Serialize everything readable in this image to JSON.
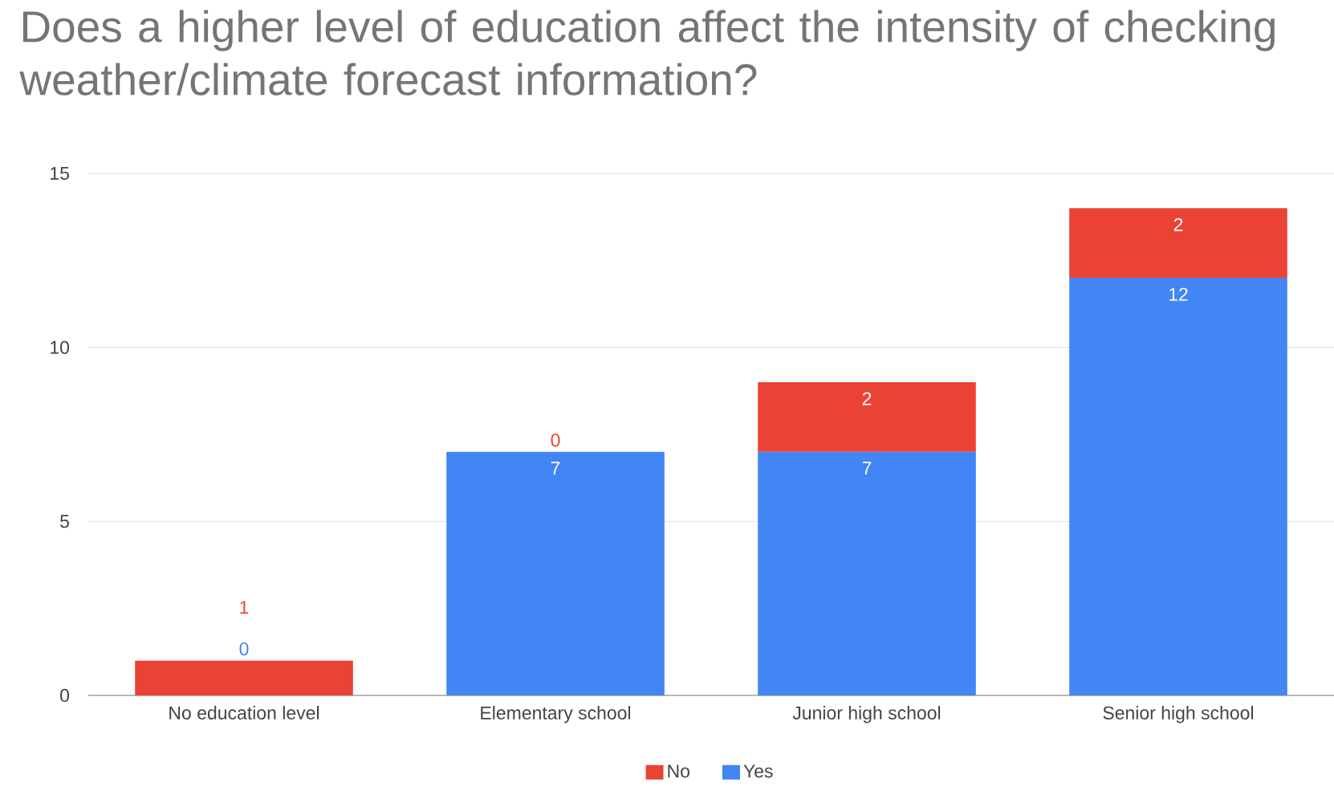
{
  "chart_data": {
    "type": "bar",
    "stacked": true,
    "title": "Does a higher level of education affect the intensity of checking weather/climate forecast information?",
    "categories": [
      "No education level",
      "Elementary school",
      "Junior high school",
      "Senior high school"
    ],
    "series": [
      {
        "name": "Yes",
        "color": "#4285f4",
        "values": [
          0,
          7,
          7,
          12
        ]
      },
      {
        "name": "No",
        "color": "#ea4335",
        "values": [
          1,
          0,
          2,
          2
        ]
      }
    ],
    "ylim": [
      0,
      15
    ],
    "yticks": [
      0,
      5,
      10,
      15
    ],
    "grid": "y",
    "legend": "bottom",
    "data_labels": true
  }
}
